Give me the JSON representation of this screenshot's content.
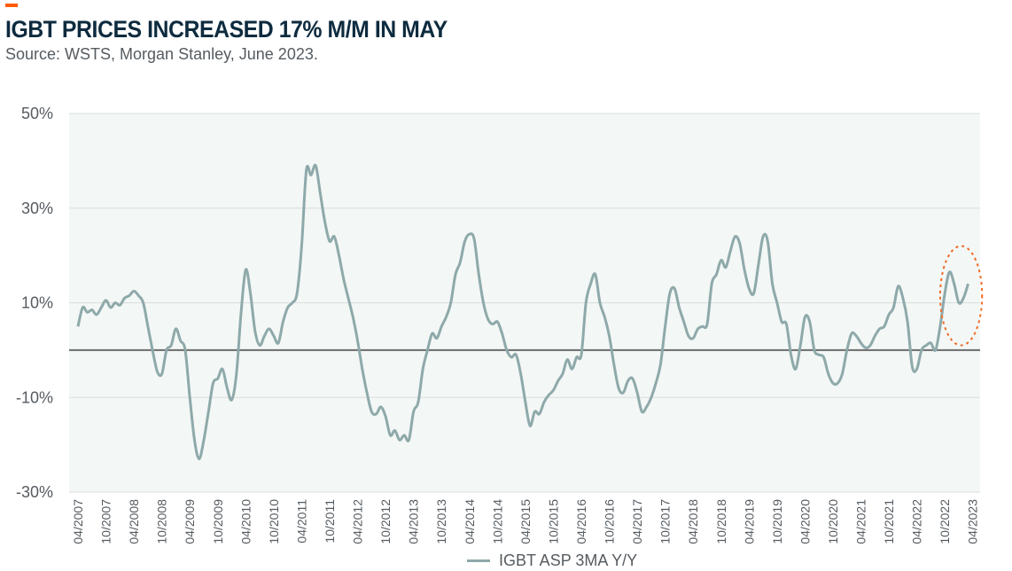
{
  "header": {
    "title": "IGBT PRICES INCREASED 17% M/M IN MAY",
    "subtitle": "Source: WSTS, Morgan Stanley, June 2023."
  },
  "colors": {
    "accent": "#ff5a00",
    "line": "#8ea9aa",
    "plot_bg": "#f3f7f5",
    "zero_line": "#6b6b6b",
    "highlight_circle": "#ef6a26",
    "text": "#555b60",
    "title": "#0e2b3f"
  },
  "chart_data": {
    "type": "line",
    "title": "IGBT PRICES INCREASED 17% M/M IN MAY",
    "subtitle": "Source: WSTS, Morgan Stanley, June 2023.",
    "xlabel": "",
    "ylabel": "",
    "ylim": [
      -30,
      50
    ],
    "y_ticks": [
      "50%",
      "30%",
      "10%",
      "-10%",
      "-30%"
    ],
    "y_tick_values": [
      50,
      30,
      10,
      -10,
      -30
    ],
    "grid": true,
    "legend_position": "bottom-center",
    "x_start": "2007-04",
    "x_end": "2023-05",
    "x_ticks": [
      "04/2007",
      "10/2007",
      "04/2008",
      "10/2008",
      "04/2009",
      "10/2009",
      "04/2010",
      "10/2010",
      "04/2011",
      "10/2011",
      "04/2012",
      "10/2012",
      "04/2013",
      "10/2013",
      "04/2014",
      "10/2014",
      "04/2015",
      "10/2015",
      "04/2016",
      "10/2016",
      "04/2017",
      "10/2017",
      "04/2018",
      "10/2018",
      "04/2019",
      "10/2019",
      "04/2020",
      "10/2020",
      "04/2021",
      "10/2021",
      "04/2022",
      "10/2022",
      "04/2023"
    ],
    "highlight": {
      "shape": "dotted-circle",
      "x_from": "2022-09",
      "x_to": "2023-06",
      "y_from": 1,
      "y_to": 22
    },
    "series": [
      {
        "name": "IGBT ASP 3MA Y/Y",
        "points": [
          [
            "2007-04",
            5
          ],
          [
            "2007-05",
            9
          ],
          [
            "2007-06",
            8
          ],
          [
            "2007-07",
            8.5
          ],
          [
            "2007-08",
            7.5
          ],
          [
            "2007-09",
            9
          ],
          [
            "2007-10",
            10.5
          ],
          [
            "2007-11",
            9
          ],
          [
            "2007-12",
            10
          ],
          [
            "2008-01",
            9.5
          ],
          [
            "2008-02",
            11
          ],
          [
            "2008-03",
            11.5
          ],
          [
            "2008-04",
            12.5
          ],
          [
            "2008-05",
            11.5
          ],
          [
            "2008-06",
            10
          ],
          [
            "2008-07",
            5
          ],
          [
            "2008-08",
            0
          ],
          [
            "2008-09",
            -4.5
          ],
          [
            "2008-10",
            -5
          ],
          [
            "2008-11",
            0
          ],
          [
            "2008-12",
            1
          ],
          [
            "2009-01",
            4.5
          ],
          [
            "2009-02",
            2
          ],
          [
            "2009-03",
            0
          ],
          [
            "2009-04",
            -10
          ],
          [
            "2009-05",
            -19
          ],
          [
            "2009-06",
            -23
          ],
          [
            "2009-07",
            -19
          ],
          [
            "2009-08",
            -13
          ],
          [
            "2009-09",
            -7
          ],
          [
            "2009-10",
            -6
          ],
          [
            "2009-11",
            -4
          ],
          [
            "2009-12",
            -8
          ],
          [
            "2010-01",
            -10.5
          ],
          [
            "2010-02",
            -5
          ],
          [
            "2010-03",
            8
          ],
          [
            "2010-04",
            17
          ],
          [
            "2010-05",
            12
          ],
          [
            "2010-06",
            4
          ],
          [
            "2010-07",
            1
          ],
          [
            "2010-08",
            3
          ],
          [
            "2010-09",
            4.5
          ],
          [
            "2010-10",
            3
          ],
          [
            "2010-11",
            1.5
          ],
          [
            "2010-12",
            6
          ],
          [
            "2011-01",
            9
          ],
          [
            "2011-02",
            10
          ],
          [
            "2011-03",
            12
          ],
          [
            "2011-04",
            22
          ],
          [
            "2011-05",
            38
          ],
          [
            "2011-06",
            37
          ],
          [
            "2011-07",
            39
          ],
          [
            "2011-08",
            33
          ],
          [
            "2011-09",
            27
          ],
          [
            "2011-10",
            23
          ],
          [
            "2011-11",
            24
          ],
          [
            "2011-12",
            20
          ],
          [
            "2012-01",
            15
          ],
          [
            "2012-02",
            11
          ],
          [
            "2012-03",
            7
          ],
          [
            "2012-04",
            2
          ],
          [
            "2012-05",
            -4
          ],
          [
            "2012-06",
            -9
          ],
          [
            "2012-07",
            -13
          ],
          [
            "2012-08",
            -13.5
          ],
          [
            "2012-09",
            -12
          ],
          [
            "2012-10",
            -14
          ],
          [
            "2012-11",
            -18
          ],
          [
            "2012-12",
            -17
          ],
          [
            "2013-01",
            -19
          ],
          [
            "2013-02",
            -18
          ],
          [
            "2013-03",
            -19
          ],
          [
            "2013-04",
            -13
          ],
          [
            "2013-05",
            -11
          ],
          [
            "2013-06",
            -4
          ],
          [
            "2013-07",
            0
          ],
          [
            "2013-08",
            3.5
          ],
          [
            "2013-09",
            2.5
          ],
          [
            "2013-10",
            5
          ],
          [
            "2013-11",
            7
          ],
          [
            "2013-12",
            10
          ],
          [
            "2014-01",
            16
          ],
          [
            "2014-02",
            18.5
          ],
          [
            "2014-03",
            23
          ],
          [
            "2014-04",
            24.5
          ],
          [
            "2014-05",
            23.5
          ],
          [
            "2014-06",
            16
          ],
          [
            "2014-07",
            10
          ],
          [
            "2014-08",
            6.5
          ],
          [
            "2014-09",
            5.5
          ],
          [
            "2014-10",
            6
          ],
          [
            "2014-11",
            3.5
          ],
          [
            "2014-12",
            0
          ],
          [
            "2015-01",
            -1.5
          ],
          [
            "2015-02",
            -1
          ],
          [
            "2015-03",
            -5
          ],
          [
            "2015-04",
            -11
          ],
          [
            "2015-05",
            -16
          ],
          [
            "2015-06",
            -13
          ],
          [
            "2015-07",
            -13.5
          ],
          [
            "2015-08",
            -11
          ],
          [
            "2015-09",
            -9.5
          ],
          [
            "2015-10",
            -8.5
          ],
          [
            "2015-11",
            -6.5
          ],
          [
            "2015-12",
            -5
          ],
          [
            "2016-01",
            -2
          ],
          [
            "2016-02",
            -4
          ],
          [
            "2016-03",
            -1.5
          ],
          [
            "2016-04",
            -1
          ],
          [
            "2016-05",
            10
          ],
          [
            "2016-06",
            14
          ],
          [
            "2016-07",
            16
          ],
          [
            "2016-08",
            10
          ],
          [
            "2016-09",
            7
          ],
          [
            "2016-10",
            3
          ],
          [
            "2016-11",
            -3
          ],
          [
            "2016-12",
            -8
          ],
          [
            "2017-01",
            -9
          ],
          [
            "2017-02",
            -6.5
          ],
          [
            "2017-03",
            -6
          ],
          [
            "2017-04",
            -9
          ],
          [
            "2017-05",
            -13
          ],
          [
            "2017-06",
            -12
          ],
          [
            "2017-07",
            -10
          ],
          [
            "2017-08",
            -7
          ],
          [
            "2017-09",
            -3
          ],
          [
            "2017-10",
            5
          ],
          [
            "2017-11",
            12
          ],
          [
            "2017-12",
            13
          ],
          [
            "2018-01",
            9
          ],
          [
            "2018-02",
            6
          ],
          [
            "2018-03",
            3
          ],
          [
            "2018-04",
            2.5
          ],
          [
            "2018-05",
            4.5
          ],
          [
            "2018-06",
            5
          ],
          [
            "2018-07",
            5.5
          ],
          [
            "2018-08",
            14
          ],
          [
            "2018-09",
            16
          ],
          [
            "2018-10",
            19
          ],
          [
            "2018-11",
            17.5
          ],
          [
            "2018-12",
            21
          ],
          [
            "2019-01",
            24
          ],
          [
            "2019-02",
            22.5
          ],
          [
            "2019-03",
            17
          ],
          [
            "2019-04",
            13
          ],
          [
            "2019-05",
            12
          ],
          [
            "2019-06",
            18
          ],
          [
            "2019-07",
            24
          ],
          [
            "2019-08",
            23
          ],
          [
            "2019-09",
            14
          ],
          [
            "2019-10",
            10
          ],
          [
            "2019-11",
            6
          ],
          [
            "2019-12",
            5.5
          ],
          [
            "2020-01",
            -1
          ],
          [
            "2020-02",
            -4
          ],
          [
            "2020-03",
            1
          ],
          [
            "2020-04",
            7
          ],
          [
            "2020-05",
            6
          ],
          [
            "2020-06",
            0
          ],
          [
            "2020-07",
            -1
          ],
          [
            "2020-08",
            -1.5
          ],
          [
            "2020-09",
            -5
          ],
          [
            "2020-10",
            -7
          ],
          [
            "2020-11",
            -7
          ],
          [
            "2020-12",
            -5
          ],
          [
            "2021-01",
            0
          ],
          [
            "2021-02",
            3.5
          ],
          [
            "2021-03",
            3
          ],
          [
            "2021-04",
            1.5
          ],
          [
            "2021-05",
            0.5
          ],
          [
            "2021-06",
            1
          ],
          [
            "2021-07",
            3
          ],
          [
            "2021-08",
            4.5
          ],
          [
            "2021-09",
            5
          ],
          [
            "2021-10",
            7.5
          ],
          [
            "2021-11",
            9
          ],
          [
            "2021-12",
            13.5
          ],
          [
            "2022-01",
            11
          ],
          [
            "2022-02",
            6
          ],
          [
            "2022-03",
            -3.5
          ],
          [
            "2022-04",
            -4
          ],
          [
            "2022-05",
            0
          ],
          [
            "2022-06",
            1
          ],
          [
            "2022-07",
            1.5
          ],
          [
            "2022-08",
            0
          ],
          [
            "2022-09",
            5
          ],
          [
            "2022-10",
            12
          ],
          [
            "2022-11",
            16.5
          ],
          [
            "2022-12",
            14
          ],
          [
            "2023-01",
            10
          ],
          [
            "2023-02",
            11
          ],
          [
            "2023-03",
            14
          ]
        ]
      }
    ]
  },
  "legend": {
    "label": "IGBT ASP 3MA Y/Y"
  }
}
